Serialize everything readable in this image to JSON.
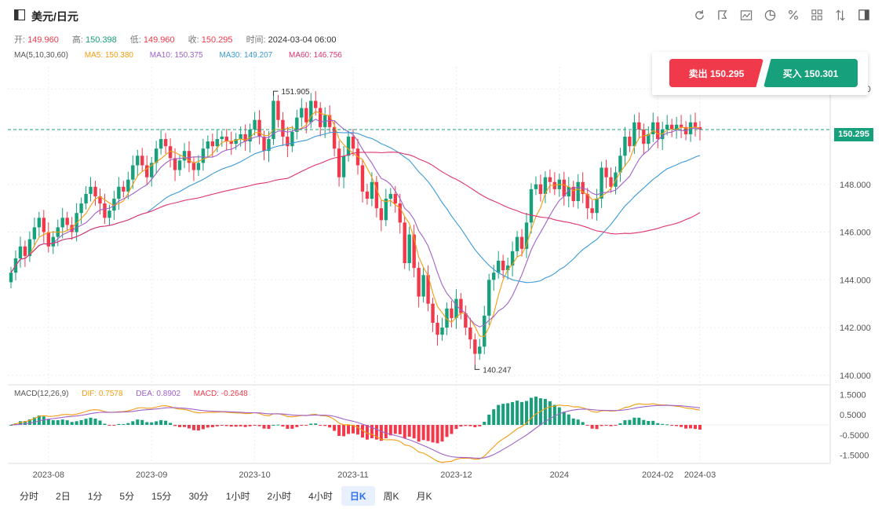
{
  "header": {
    "title": "美元/日元",
    "tools": [
      "refresh-icon",
      "draw-icon",
      "indicator-icon",
      "pie-icon",
      "percent-icon",
      "grid-icon",
      "compare-icon",
      "panel-icon"
    ]
  },
  "ohlc": {
    "open_label": "开:",
    "open": "149.960",
    "high_label": "高:",
    "high": "150.398",
    "low_label": "低:",
    "low": "149.960",
    "close_label": "收:",
    "close": "150.295",
    "time_label": "时间:",
    "time": "2024-03-04 06:00"
  },
  "ma": {
    "label": "MA(5,10,30,60)",
    "ma5": "MA5: 150.380",
    "ma10": "MA10: 150.375",
    "ma30": "MA30: 149.207",
    "ma60": "MA60: 146.756"
  },
  "trade": {
    "sell_label": "卖出 150.295",
    "buy_label": "买入 150.301"
  },
  "last_price": "150.295",
  "macd": {
    "label": "MACD(12,26,9)",
    "dif": "DIF: 0.7578",
    "dea": "DEA: 0.8902",
    "macd": "MACD: -0.2648"
  },
  "timeframes": [
    "分时",
    "2日",
    "1分",
    "5分",
    "15分",
    "30分",
    "1小时",
    "2小时",
    "4小时",
    "日K",
    "周K",
    "月K"
  ],
  "active_timeframe": "日K",
  "colors": {
    "up": "#16a07b",
    "down": "#f0394a",
    "ma5": "#f39c12",
    "ma10": "#a061c8",
    "ma30": "#3a9ad9",
    "ma60": "#e0336e"
  },
  "chart_data": {
    "type": "candlestick",
    "x_ticks": [
      "2023-08",
      "2023-09",
      "2023-10",
      "2023-11",
      "2023-12",
      "2024",
      "2024-02",
      "2024-03"
    ],
    "y_ticks": [
      "152.000",
      "150.000",
      "148.000",
      "146.000",
      "144.000",
      "142.000",
      "140.000"
    ],
    "ylim": [
      139.6,
      152.6
    ],
    "annotations": [
      {
        "label": "151.905",
        "value": 151.905
      },
      {
        "label": "140.247",
        "value": 140.247
      }
    ],
    "close_series": [
      144.3,
      144.9,
      145.4,
      145.0,
      145.7,
      146.2,
      146.6,
      146.0,
      145.4,
      145.8,
      146.2,
      146.6,
      146.3,
      146.0,
      146.8,
      147.2,
      147.6,
      147.9,
      147.5,
      147.2,
      146.6,
      146.9,
      147.4,
      147.9,
      147.7,
      148.2,
      148.8,
      149.2,
      148.8,
      148.3,
      148.9,
      149.5,
      149.9,
      149.6,
      149.1,
      148.6,
      149.0,
      149.4,
      148.9,
      148.6,
      148.9,
      149.5,
      149.8,
      149.6,
      149.9,
      150.0,
      149.8,
      149.7,
      149.9,
      150.1,
      149.8,
      150.3,
      150.7,
      150.0,
      149.4,
      149.9,
      151.5,
      150.7,
      150.0,
      149.6,
      150.2,
      150.8,
      151.2,
      150.6,
      151.5,
      151.2,
      150.4,
      150.9,
      150.4,
      149.5,
      148.3,
      149.2,
      150.0,
      149.5,
      148.8,
      147.7,
      147.4,
      148.1,
      147.0,
      146.5,
      147.4,
      147.6,
      147.2,
      146.4,
      144.7,
      145.9,
      144.5,
      143.3,
      144.2,
      143.0,
      142.2,
      141.7,
      142.0,
      142.8,
      142.4,
      143.2,
      142.6,
      142.0,
      141.5,
      140.9,
      141.2,
      142.5,
      144.0,
      144.3,
      144.8,
      144.4,
      144.6,
      145.2,
      145.8,
      145.3,
      146.4,
      147.8,
      148.0,
      147.6,
      148.3,
      148.1,
      147.8,
      148.2,
      147.5,
      147.9,
      147.3,
      148.1,
      147.6,
      147.0,
      146.8,
      147.4,
      148.7,
      148.3,
      147.9,
      148.5,
      149.2,
      150.0,
      149.6,
      150.6,
      150.3,
      149.7,
      150.1,
      150.6,
      149.9,
      150.3,
      150.5,
      150.3,
      150.5,
      150.4,
      150.1,
      150.6,
      150.4,
      150.3
    ],
    "ma5_last": 150.38,
    "ma10_last": 150.375,
    "ma30_last": 149.207,
    "ma60_last": 146.756,
    "macd_ticks": [
      "1.5000",
      "0.5000",
      "-0.5000",
      "-1.5000"
    ],
    "macd_ylim": [
      -1.9,
      1.9
    ],
    "dif_last": 0.7578,
    "dea_last": 0.8902,
    "macd_last": -0.2648
  }
}
